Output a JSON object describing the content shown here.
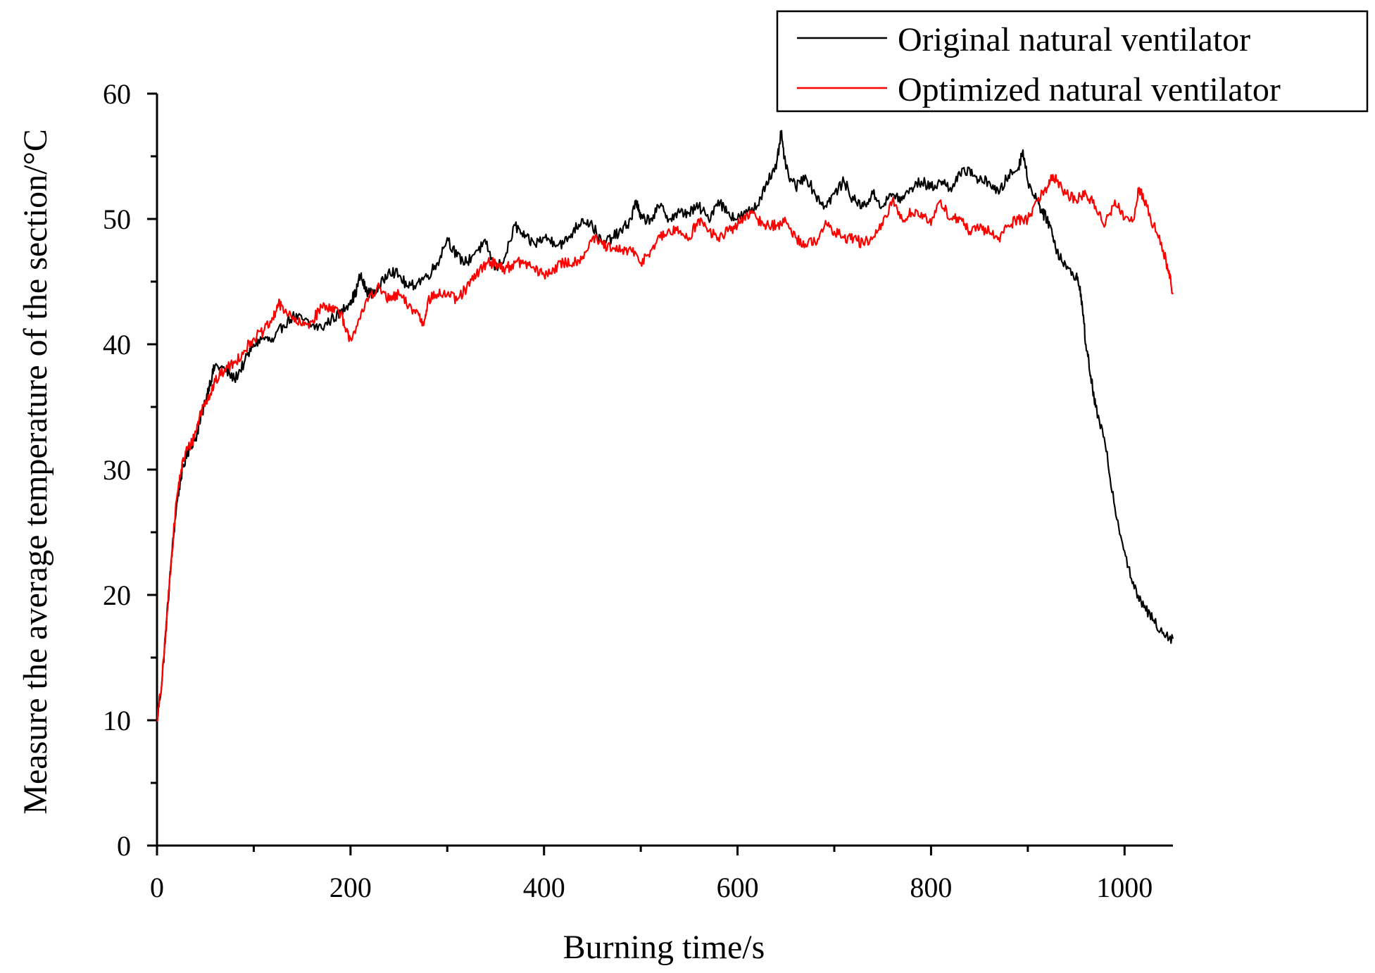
{
  "chart_data": {
    "type": "line",
    "title": "",
    "xlabel": "Burning time/s",
    "ylabel": "Measure the average temperature of the section/°C",
    "xlim": [
      0,
      1050
    ],
    "ylim": [
      0,
      60
    ],
    "x_ticks": [
      "0",
      "200",
      "400",
      "600",
      "800",
      "1000"
    ],
    "y_ticks": [
      "0",
      "10",
      "20",
      "30",
      "40",
      "50",
      "60"
    ],
    "legend_position": "top-right",
    "series": [
      {
        "name": "Original natural ventilator",
        "color": "#000000",
        "points": [
          [
            0,
            10
          ],
          [
            5,
            13
          ],
          [
            10,
            18
          ],
          [
            15,
            23
          ],
          [
            20,
            27
          ],
          [
            25,
            29.5
          ],
          [
            30,
            31
          ],
          [
            35,
            32
          ],
          [
            40,
            32.5
          ],
          [
            45,
            34
          ],
          [
            50,
            35.5
          ],
          [
            55,
            37
          ],
          [
            60,
            38.3
          ],
          [
            70,
            38
          ],
          [
            80,
            37.2
          ],
          [
            90,
            38.5
          ],
          [
            100,
            40
          ],
          [
            110,
            40.5
          ],
          [
            120,
            40.2
          ],
          [
            130,
            41.5
          ],
          [
            140,
            42.2
          ],
          [
            150,
            42
          ],
          [
            160,
            41.5
          ],
          [
            170,
            41.3
          ],
          [
            180,
            42
          ],
          [
            190,
            42.5
          ],
          [
            200,
            43.5
          ],
          [
            205,
            44
          ],
          [
            210,
            45.5
          ],
          [
            215,
            44.5
          ],
          [
            220,
            44
          ],
          [
            230,
            44.5
          ],
          [
            240,
            46
          ],
          [
            250,
            45.5
          ],
          [
            260,
            44.5
          ],
          [
            270,
            45
          ],
          [
            280,
            45.5
          ],
          [
            290,
            46.5
          ],
          [
            300,
            48.5
          ],
          [
            310,
            47
          ],
          [
            320,
            46.5
          ],
          [
            330,
            47.5
          ],
          [
            340,
            48
          ],
          [
            350,
            46
          ],
          [
            360,
            47
          ],
          [
            370,
            49.5
          ],
          [
            380,
            48.5
          ],
          [
            390,
            48
          ],
          [
            400,
            48.5
          ],
          [
            410,
            48.2
          ],
          [
            420,
            48
          ],
          [
            430,
            49
          ],
          [
            440,
            50
          ],
          [
            450,
            49.5
          ],
          [
            460,
            48
          ],
          [
            470,
            48.5
          ],
          [
            480,
            49
          ],
          [
            490,
            50
          ],
          [
            495,
            51.5
          ],
          [
            500,
            50
          ],
          [
            510,
            50
          ],
          [
            520,
            51
          ],
          [
            530,
            50
          ],
          [
            540,
            50.5
          ],
          [
            550,
            50.5
          ],
          [
            560,
            51
          ],
          [
            570,
            50
          ],
          [
            580,
            51.5
          ],
          [
            590,
            50.5
          ],
          [
            600,
            50
          ],
          [
            610,
            50.5
          ],
          [
            620,
            51
          ],
          [
            630,
            53
          ],
          [
            640,
            54
          ],
          [
            645,
            56.9
          ],
          [
            650,
            54
          ],
          [
            660,
            52.5
          ],
          [
            670,
            53.5
          ],
          [
            680,
            52
          ],
          [
            690,
            51
          ],
          [
            700,
            52
          ],
          [
            710,
            53
          ],
          [
            720,
            51.5
          ],
          [
            730,
            51
          ],
          [
            740,
            52
          ],
          [
            750,
            51
          ],
          [
            760,
            52
          ],
          [
            770,
            51.5
          ],
          [
            780,
            52.5
          ],
          [
            790,
            53
          ],
          [
            800,
            52.5
          ],
          [
            810,
            53
          ],
          [
            820,
            52.5
          ],
          [
            830,
            53.5
          ],
          [
            840,
            54
          ],
          [
            850,
            53
          ],
          [
            860,
            53
          ],
          [
            870,
            52
          ],
          [
            880,
            53.5
          ],
          [
            890,
            54
          ],
          [
            895,
            55.5
          ],
          [
            900,
            53
          ],
          [
            910,
            51.5
          ],
          [
            915,
            50.5
          ],
          [
            920,
            50
          ],
          [
            925,
            49
          ],
          [
            930,
            47.5
          ],
          [
            940,
            46
          ],
          [
            950,
            45.5
          ],
          [
            955,
            44
          ],
          [
            960,
            40
          ],
          [
            965,
            37.5
          ],
          [
            970,
            35
          ],
          [
            980,
            32
          ],
          [
            990,
            27
          ],
          [
            1000,
            23.5
          ],
          [
            1010,
            20.5
          ],
          [
            1020,
            19
          ],
          [
            1030,
            18
          ],
          [
            1040,
            17
          ],
          [
            1050,
            16.5
          ]
        ]
      },
      {
        "name": "Optimized natural ventilator",
        "color": "#ff0000",
        "points": [
          [
            0,
            10
          ],
          [
            5,
            13
          ],
          [
            10,
            18
          ],
          [
            15,
            23
          ],
          [
            20,
            27.5
          ],
          [
            25,
            30
          ],
          [
            30,
            31.5
          ],
          [
            35,
            32
          ],
          [
            40,
            33
          ],
          [
            45,
            34.5
          ],
          [
            50,
            35.5
          ],
          [
            55,
            36
          ],
          [
            60,
            37
          ],
          [
            70,
            38
          ],
          [
            80,
            38.5
          ],
          [
            90,
            39.5
          ],
          [
            100,
            40.5
          ],
          [
            110,
            41
          ],
          [
            120,
            42
          ],
          [
            125,
            43.2
          ],
          [
            130,
            43
          ],
          [
            140,
            42
          ],
          [
            150,
            41.5
          ],
          [
            160,
            41.8
          ],
          [
            170,
            43
          ],
          [
            180,
            43
          ],
          [
            190,
            42.5
          ],
          [
            195,
            41
          ],
          [
            200,
            40.5
          ],
          [
            210,
            42
          ],
          [
            220,
            44
          ],
          [
            230,
            44.5
          ],
          [
            240,
            43.5
          ],
          [
            250,
            44
          ],
          [
            260,
            43
          ],
          [
            270,
            42.5
          ],
          [
            275,
            41.5
          ],
          [
            280,
            43.5
          ],
          [
            290,
            44
          ],
          [
            300,
            44
          ],
          [
            310,
            43.5
          ],
          [
            320,
            44.5
          ],
          [
            330,
            45.5
          ],
          [
            340,
            46.5
          ],
          [
            350,
            46.5
          ],
          [
            360,
            46
          ],
          [
            370,
            46.5
          ],
          [
            380,
            46.5
          ],
          [
            390,
            46
          ],
          [
            400,
            45.5
          ],
          [
            410,
            46
          ],
          [
            420,
            46.5
          ],
          [
            430,
            46.5
          ],
          [
            440,
            47
          ],
          [
            450,
            48.5
          ],
          [
            460,
            48
          ],
          [
            470,
            47.5
          ],
          [
            480,
            47.5
          ],
          [
            490,
            47.5
          ],
          [
            500,
            46.5
          ],
          [
            510,
            47.5
          ],
          [
            520,
            48.5
          ],
          [
            530,
            49
          ],
          [
            540,
            49
          ],
          [
            550,
            48.5
          ],
          [
            560,
            50
          ],
          [
            570,
            49
          ],
          [
            580,
            48.5
          ],
          [
            590,
            49
          ],
          [
            600,
            49.5
          ],
          [
            610,
            50.5
          ],
          [
            620,
            50
          ],
          [
            630,
            49.5
          ],
          [
            640,
            49.5
          ],
          [
            650,
            49.8
          ],
          [
            660,
            48.5
          ],
          [
            670,
            48
          ],
          [
            680,
            48.2
          ],
          [
            690,
            49.5
          ],
          [
            700,
            49
          ],
          [
            710,
            48.5
          ],
          [
            720,
            48.5
          ],
          [
            730,
            48
          ],
          [
            740,
            48.5
          ],
          [
            750,
            49.5
          ],
          [
            760,
            51.5
          ],
          [
            770,
            50
          ],
          [
            780,
            50.5
          ],
          [
            790,
            50.5
          ],
          [
            800,
            49.5
          ],
          [
            810,
            51.5
          ],
          [
            820,
            50
          ],
          [
            830,
            50
          ],
          [
            840,
            49
          ],
          [
            850,
            49.2
          ],
          [
            860,
            49
          ],
          [
            870,
            48.5
          ],
          [
            880,
            49.5
          ],
          [
            890,
            50
          ],
          [
            900,
            50
          ],
          [
            910,
            51.5
          ],
          [
            920,
            52.5
          ],
          [
            925,
            53.5
          ],
          [
            930,
            53
          ],
          [
            940,
            52
          ],
          [
            950,
            51.5
          ],
          [
            960,
            52
          ],
          [
            970,
            51
          ],
          [
            980,
            49.5
          ],
          [
            990,
            51.5
          ],
          [
            1000,
            50
          ],
          [
            1010,
            50
          ],
          [
            1015,
            52.5
          ],
          [
            1020,
            51.5
          ],
          [
            1030,
            49.5
          ],
          [
            1040,
            47.5
          ],
          [
            1045,
            46
          ],
          [
            1050,
            44
          ]
        ]
      }
    ]
  }
}
